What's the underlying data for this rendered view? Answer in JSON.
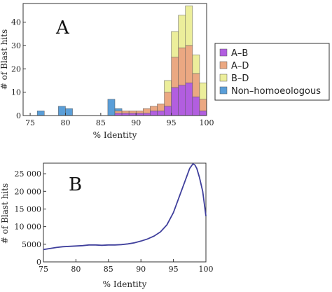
{
  "chart_data": [
    {
      "type": "bar",
      "stacked": true,
      "panel_label": "A",
      "xlabel": "% Identity",
      "ylabel": "# of Blast hits",
      "xlim": [
        74,
        100
      ],
      "ylim": [
        0,
        48
      ],
      "xticks": [
        75,
        80,
        85,
        90,
        95,
        100
      ],
      "yticks": [
        0,
        10,
        20,
        30,
        40
      ],
      "bin_width": 1,
      "bins": [
        76,
        79,
        80,
        86,
        87,
        88,
        89,
        90,
        91,
        92,
        93,
        94,
        95,
        96,
        97,
        98,
        99
      ],
      "series": [
        {
          "name": "A–B",
          "color": "#b25ee0",
          "values": [
            0,
            0,
            0,
            0,
            1,
            1,
            1,
            1,
            1,
            2,
            2,
            4,
            12,
            13,
            14,
            8,
            2
          ]
        },
        {
          "name": "A–D",
          "color": "#eba882",
          "values": [
            0,
            0,
            0,
            0,
            1,
            1,
            1,
            1,
            2,
            2,
            3,
            6,
            13,
            16,
            16,
            10,
            5
          ]
        },
        {
          "name": "B–D",
          "color": "#ecee9b",
          "values": [
            0,
            0,
            0,
            0,
            0,
            0,
            0,
            0,
            0,
            0,
            0,
            5,
            11,
            14,
            17,
            8,
            7
          ]
        },
        {
          "name": "Non–homoeologous",
          "color": "#5a9ed8",
          "values": [
            2,
            4,
            3,
            7,
            1,
            0,
            0,
            0,
            0,
            0,
            0,
            0,
            0,
            0,
            0,
            0,
            0
          ]
        }
      ],
      "legend": "right"
    },
    {
      "type": "line",
      "panel_label": "B",
      "xlabel": "% Identity",
      "ylabel": "# of Blast hits",
      "xlim": [
        75,
        100
      ],
      "ylim": [
        0,
        28000
      ],
      "xticks": [
        75,
        80,
        85,
        90,
        95,
        100
      ],
      "yticks": [
        0,
        5000,
        10000,
        15000,
        20000,
        25000
      ],
      "ytick_labels": [
        "0",
        "5000",
        "10 000",
        "15 000",
        "20 000",
        "25 000"
      ],
      "color": "#3f3f9c",
      "x": [
        75,
        76,
        77,
        78,
        79,
        80,
        81,
        82,
        83,
        84,
        85,
        86,
        87,
        88,
        89,
        90,
        91,
        92,
        93,
        94,
        95,
        96,
        97,
        97.5,
        98,
        98.3,
        98.6,
        99,
        99.5,
        100
      ],
      "y": [
        3500,
        3800,
        4100,
        4300,
        4400,
        4500,
        4600,
        4800,
        4800,
        4700,
        4800,
        4800,
        4900,
        5100,
        5400,
        5900,
        6500,
        7300,
        8500,
        10500,
        14000,
        19000,
        24000,
        26500,
        27800,
        27500,
        26500,
        24000,
        20000,
        13000
      ]
    }
  ]
}
